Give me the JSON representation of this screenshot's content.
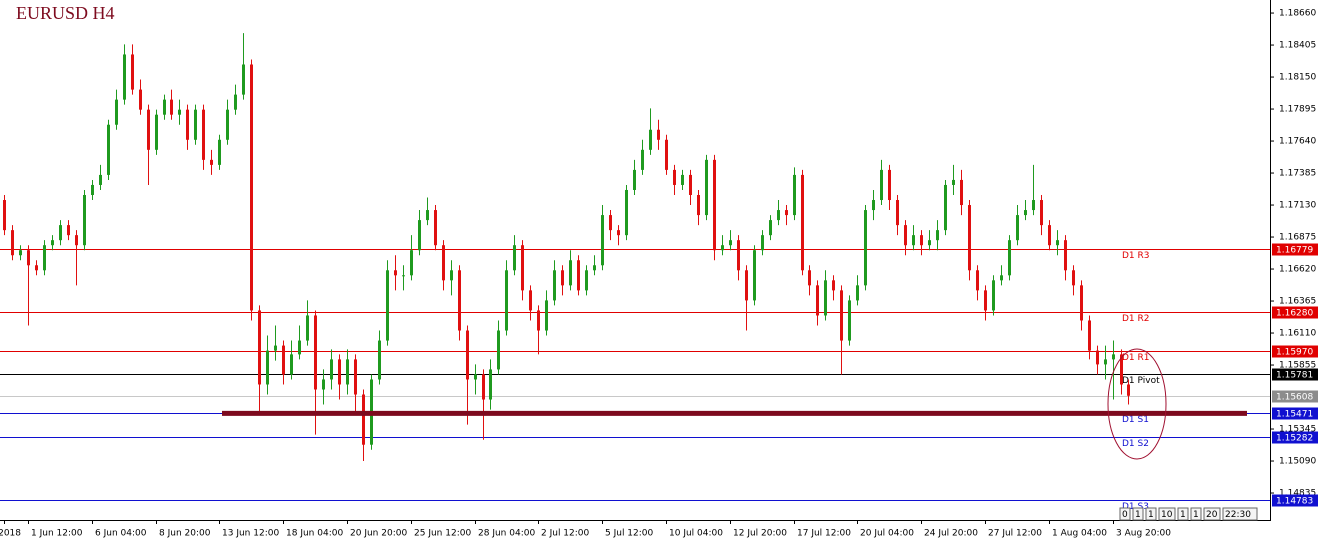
{
  "chart_data": {
    "type": "candlestick",
    "title": "EURUSD H4",
    "categories": [
      "2018",
      null,
      null,
      "1 Jun 12:00",
      null,
      null,
      null,
      null,
      null,
      null,
      null,
      "6 Jun 04:00",
      null,
      null,
      null,
      null,
      null,
      null,
      null,
      "8 Jun 20:00",
      null,
      null,
      null,
      null,
      null,
      null,
      null,
      "13 Jun 12:00",
      null,
      null,
      null,
      null,
      null,
      null,
      null,
      "18 Jun 04:00",
      null,
      null,
      null,
      null,
      null,
      null,
      null,
      "20 Jun 20:00",
      null,
      null,
      null,
      null,
      null,
      null,
      null,
      "25 Jun 12:00",
      null,
      null,
      null,
      null,
      null,
      null,
      null,
      "28 Jun 04:00",
      null,
      null,
      null,
      null,
      null,
      null,
      null,
      "2 Jul 12:00",
      null,
      null,
      null,
      null,
      null,
      null,
      null,
      "5 Jul 12:00",
      null,
      null,
      null,
      null,
      null,
      null,
      null,
      "10 Jul 04:00",
      null,
      null,
      null,
      null,
      null,
      null,
      null,
      "12 Jul 20:00",
      null,
      null,
      null,
      null,
      null,
      null,
      null,
      "17 Jul 12:00",
      null,
      null,
      null,
      null,
      null,
      null,
      null,
      "20 Jul 04:00",
      null,
      null,
      null,
      null,
      null,
      null,
      null,
      "24 Jul 20:00",
      null,
      null,
      null,
      null,
      null,
      null,
      null,
      "27 Jul 12:00",
      null,
      null,
      null,
      null,
      null,
      null,
      null,
      "1 Aug 04:00",
      null,
      null,
      null,
      null,
      null,
      null,
      null,
      "3 Aug 20:00",
      null,
      null
    ],
    "open": [
      1.1717,
      1.1693,
      1.1673,
      1.1677,
      1.1665,
      1.1661,
      1.1681,
      1.1685,
      1.1697,
      1.1689,
      1.1681,
      1.1721,
      1.1729,
      1.1737,
      1.1777,
      1.1797,
      1.1833,
      1.1805,
      1.1789,
      1.1757,
      1.1785,
      1.1797,
      1.1785,
      1.1789,
      1.1765,
      1.1789,
      1.1749,
      1.1745,
      1.1765,
      1.1789,
      1.1801,
      1.1825,
      1.1629,
      1.157,
      1.1597,
      1.1601,
      1.1578,
      1.1594,
      1.1605,
      1.1625,
      1.1566,
      1.1574,
      1.159,
      1.157,
      1.159,
      1.1562,
      1.1522,
      1.1574,
      1.1605,
      1.1661,
      1.1657,
      1.1657,
      1.1677,
      1.1701,
      1.1709,
      1.1681,
      1.1653,
      1.1661,
      1.1613,
      1.1574,
      1.1578,
      1.1558,
      1.1582,
      1.1613,
      1.1661,
      1.1681,
      1.1645,
      1.1629,
      1.1613,
      1.1637,
      1.1661,
      1.1649,
      1.1669,
      1.1645,
      1.1661,
      1.1665,
      1.1705,
      1.1693,
      1.1689,
      1.1725,
      1.1741,
      1.1757,
      1.1773,
      1.1765,
      1.1741,
      1.1729,
      1.1737,
      1.1721,
      1.1705,
      1.1749,
      1.1677,
      1.1681,
      1.1685,
      1.1661,
      1.1637,
      1.1677,
      1.1689,
      1.1701,
      1.1709,
      1.1705,
      1.1737,
      1.1661,
      1.1649,
      1.1625,
      1.1653,
      1.1645,
      1.1605,
      1.1637,
      1.1649,
      1.1709,
      1.1717,
      1.1741,
      1.1717,
      1.1697,
      1.1681,
      1.1689,
      1.1681,
      1.1685,
      1.1693,
      1.1729,
      1.1733,
      1.1713,
      1.1661,
      1.1645,
      1.1629,
      1.1653,
      1.1657,
      1.1685,
      1.1705,
      1.1709,
      1.1717,
      1.1697,
      1.1681,
      1.1685,
      1.1661,
      1.1649,
      1.1621,
      1.1597,
      1.1586,
      1.159,
      1.1594,
      1.157
    ],
    "high": [
      1.1721,
      1.1697,
      1.1681,
      1.1681,
      1.1669,
      1.1685,
      1.1689,
      1.1701,
      1.1701,
      1.1693,
      1.1725,
      1.1733,
      1.1745,
      1.1781,
      1.1805,
      1.1841,
      1.1841,
      1.1813,
      1.1793,
      1.1789,
      1.1801,
      1.1805,
      1.1797,
      1.1793,
      1.1793,
      1.1793,
      1.1757,
      1.1769,
      1.1797,
      1.1809,
      1.185,
      1.1829,
      1.1633,
      1.1609,
      1.1617,
      1.1605,
      1.1605,
      1.1617,
      1.1637,
      1.1629,
      1.1582,
      1.1598,
      1.1594,
      1.1598,
      1.1594,
      1.1566,
      1.1578,
      1.1613,
      1.1669,
      1.1673,
      1.1665,
      1.1689,
      1.1709,
      1.1719,
      1.1713,
      1.1685,
      1.1669,
      1.1665,
      1.1617,
      1.1586,
      1.1582,
      1.159,
      1.1621,
      1.1669,
      1.1689,
      1.1685,
      1.1649,
      1.1633,
      1.1645,
      1.1669,
      1.1665,
      1.1677,
      1.1673,
      1.1665,
      1.1673,
      1.1713,
      1.1709,
      1.1697,
      1.1729,
      1.1749,
      1.1765,
      1.179,
      1.1781,
      1.1769,
      1.1745,
      1.1741,
      1.1741,
      1.1725,
      1.1753,
      1.1753,
      1.1689,
      1.1693,
      1.1689,
      1.1665,
      1.1681,
      1.1693,
      1.1705,
      1.1717,
      1.1713,
      1.1743,
      1.1741,
      1.1665,
      1.1653,
      1.1661,
      1.1657,
      1.1649,
      1.1641,
      1.1657,
      1.1713,
      1.1725,
      1.1749,
      1.1745,
      1.1721,
      1.1701,
      1.1697,
      1.1693,
      1.1693,
      1.1701,
      1.1733,
      1.1745,
      1.1741,
      1.1717,
      1.1665,
      1.1649,
      1.1657,
      1.1665,
      1.1689,
      1.1713,
      1.1717,
      1.1745,
      1.1721,
      1.1701,
      1.1693,
      1.1689,
      1.1665,
      1.1653,
      1.1625,
      1.1601,
      1.1601,
      1.1605,
      1.1598,
      1.1574
    ],
    "low": [
      1.1689,
      1.1669,
      1.1669,
      1.1617,
      1.1657,
      1.1657,
      1.1677,
      1.1681,
      1.1685,
      1.1649,
      1.1677,
      1.1717,
      1.1725,
      1.1733,
      1.1773,
      1.1793,
      1.1801,
      1.1785,
      1.1729,
      1.1753,
      1.1781,
      1.1781,
      1.1777,
      1.1757,
      1.1761,
      1.1741,
      1.1737,
      1.1741,
      1.1761,
      1.1785,
      1.1797,
      1.1621,
      1.1546,
      1.1562,
      1.1589,
      1.157,
      1.1574,
      1.159,
      1.1601,
      1.153,
      1.1554,
      1.1566,
      1.1558,
      1.1562,
      1.1546,
      1.1509,
      1.1518,
      1.157,
      1.1601,
      1.1645,
      1.1645,
      1.1653,
      1.1673,
      1.1697,
      1.1677,
      1.1645,
      1.1641,
      1.1605,
      1.1538,
      1.1562,
      1.1526,
      1.155,
      1.1578,
      1.1609,
      1.1657,
      1.1637,
      1.1621,
      1.1594,
      1.1609,
      1.1633,
      1.1641,
      1.1645,
      1.1641,
      1.1641,
      1.1657,
      1.1661,
      1.1685,
      1.1681,
      1.1685,
      1.1721,
      1.1737,
      1.1753,
      1.1757,
      1.1737,
      1.1721,
      1.1725,
      1.1713,
      1.1697,
      1.1701,
      1.1669,
      1.1673,
      1.1677,
      1.1653,
      1.1613,
      1.1633,
      1.1673,
      1.1685,
      1.1697,
      1.1697,
      1.1701,
      1.1657,
      1.1641,
      1.1617,
      1.1621,
      1.1637,
      1.1578,
      1.1601,
      1.1633,
      1.1645,
      1.1701,
      1.1713,
      1.1709,
      1.1689,
      1.1673,
      1.1677,
      1.1673,
      1.1677,
      1.1677,
      1.1689,
      1.1721,
      1.1705,
      1.1653,
      1.1637,
      1.1621,
      1.1625,
      1.1649,
      1.1653,
      1.1681,
      1.1701,
      1.1705,
      1.1689,
      1.1677,
      1.1673,
      1.1653,
      1.1641,
      1.1613,
      1.159,
      1.1578,
      1.1574,
      1.1558,
      1.1562,
      1.1554
    ],
    "close": [
      1.1693,
      1.1673,
      1.1677,
      1.1665,
      1.1661,
      1.1681,
      1.1685,
      1.1697,
      1.1689,
      1.1681,
      1.1721,
      1.1729,
      1.1737,
      1.1777,
      1.1797,
      1.1833,
      1.1805,
      1.1789,
      1.1757,
      1.1785,
      1.1797,
      1.1785,
      1.1789,
      1.1765,
      1.1789,
      1.1749,
      1.1745,
      1.1765,
      1.1789,
      1.1801,
      1.1825,
      1.1629,
      1.157,
      1.1597,
      1.1601,
      1.1578,
      1.1594,
      1.1605,
      1.1625,
      1.1566,
      1.1574,
      1.159,
      1.157,
      1.159,
      1.1562,
      1.1522,
      1.1574,
      1.1605,
      1.1661,
      1.1657,
      1.1657,
      1.1677,
      1.1701,
      1.1709,
      1.1681,
      1.1653,
      1.1661,
      1.1613,
      1.1574,
      1.1578,
      1.1558,
      1.1582,
      1.1613,
      1.1661,
      1.1681,
      1.1645,
      1.1629,
      1.1613,
      1.1637,
      1.1661,
      1.1649,
      1.1669,
      1.1645,
      1.1661,
      1.1665,
      1.1705,
      1.1693,
      1.1689,
      1.1725,
      1.1741,
      1.1757,
      1.1773,
      1.1765,
      1.1741,
      1.1729,
      1.1737,
      1.1721,
      1.1705,
      1.1749,
      1.1677,
      1.1681,
      1.1685,
      1.1661,
      1.1637,
      1.1677,
      1.1689,
      1.1701,
      1.1709,
      1.1705,
      1.1737,
      1.1661,
      1.1649,
      1.1625,
      1.1653,
      1.1645,
      1.1605,
      1.1637,
      1.1649,
      1.1709,
      1.1717,
      1.1741,
      1.1717,
      1.1697,
      1.1681,
      1.1689,
      1.1681,
      1.1685,
      1.1693,
      1.1729,
      1.1733,
      1.1713,
      1.1661,
      1.1645,
      1.1629,
      1.1653,
      1.1657,
      1.1685,
      1.1705,
      1.1709,
      1.1717,
      1.1697,
      1.1681,
      1.1685,
      1.1661,
      1.1649,
      1.1621,
      1.1597,
      1.1586,
      1.159,
      1.1594,
      1.157,
      1.1561
    ],
    "up_color": "#1f9a1f",
    "down_color": "#e01010",
    "ylim": [
      1.1462,
      1.18764
    ],
    "yticks": [
      {
        "value": 1.1866,
        "label": "1.18660"
      },
      1.18405,
      {
        "value": 1.1815,
        "label": "1.18150"
      },
      1.17895,
      {
        "value": 1.1764,
        "label": "1.17640"
      },
      1.17385,
      {
        "value": 1.1713,
        "label": "1.17130"
      },
      1.16875,
      {
        "value": 1.1662,
        "label": "1.16620"
      },
      1.16365,
      {
        "value": 1.1611,
        "label": "1.16110"
      },
      1.15855,
      1.15345,
      {
        "value": 1.1509,
        "label": "1.15090"
      },
      1.14835
    ],
    "levels": [
      {
        "name": "D1 R3",
        "price": 1.16779,
        "color": "#e00000"
      },
      {
        "name": "D1 R2",
        "price": {
          "value": 1.1628,
          "label": "1.16280"
        },
        "color": "#e00000"
      },
      {
        "name": "D1 R1",
        "price": {
          "value": 1.1597,
          "label": "1.15970"
        },
        "color": "#e00000"
      },
      {
        "name": "D1 Pivot",
        "price": 1.15781,
        "color": "#000000"
      },
      {
        "name": "D1 S1",
        "price": 1.15471,
        "color": "#1010d0"
      },
      {
        "name": "D1 S2",
        "price": 1.15282,
        "color": "#1010d0"
      },
      {
        "name": "D1 S3",
        "price": 1.14783,
        "color": "#1010d0"
      }
    ],
    "current_price": {
      "price": 1.15608,
      "color": "#8c8c8c"
    },
    "support_line": {
      "price": 1.1547,
      "color": "#7d0a1e"
    }
  },
  "toolbar": {
    "buttons": [
      "0",
      "1",
      "1",
      "10",
      "1",
      "1",
      "20",
      "22:30"
    ]
  }
}
